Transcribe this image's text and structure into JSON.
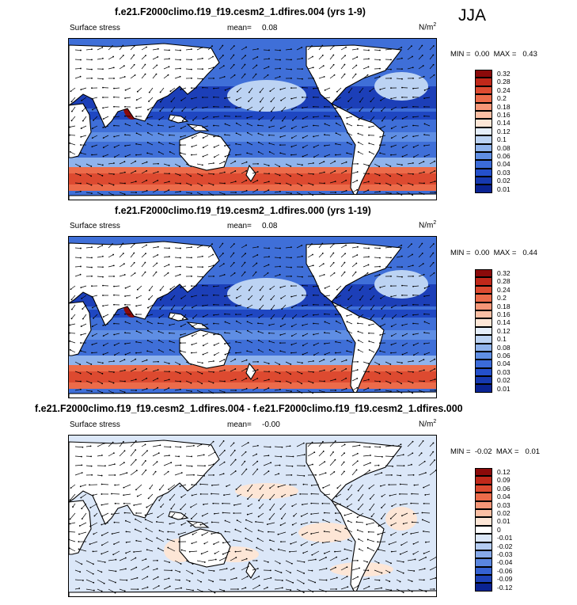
{
  "season": "JJA",
  "panels": [
    {
      "title": "f.e21.F2000climo.f19_f19.cesm2_1.dfires.004 (yrs 1-9)",
      "variable": "Surface stress",
      "mean_label": "mean=",
      "mean": "0.08",
      "units_base": "N/m",
      "units_exp": "2",
      "min_label": "MIN =",
      "min": "0.00",
      "max_label": "MAX =",
      "max": "0.43",
      "colorbar_levels": [
        "0.32",
        "0.28",
        "0.24",
        "0.2",
        "0.18",
        "0.16",
        "0.14",
        "0.12",
        "0.1",
        "0.08",
        "0.06",
        "0.04",
        "0.03",
        "0.02",
        "0.01"
      ],
      "colorbar_colors": [
        "#8b0a0a",
        "#c0281a",
        "#dd4a30",
        "#ec6b4a",
        "#f59677",
        "#fbbfa4",
        "#fde6d6",
        "#e5eefa",
        "#bcd3f3",
        "#8fb3ec",
        "#5f8ee4",
        "#3b6bd9",
        "#2450cc",
        "#1639b0",
        "#0a2392"
      ]
    },
    {
      "title": "f.e21.F2000climo.f19_f19.cesm2_1.dfires.000 (yrs 1-19)",
      "variable": "Surface stress",
      "mean_label": "mean=",
      "mean": "0.08",
      "units_base": "N/m",
      "units_exp": "2",
      "min_label": "MIN =",
      "min": "0.00",
      "max_label": "MAX =",
      "max": "0.44",
      "colorbar_levels": [
        "0.32",
        "0.28",
        "0.24",
        "0.2",
        "0.18",
        "0.16",
        "0.14",
        "0.12",
        "0.1",
        "0.08",
        "0.06",
        "0.04",
        "0.03",
        "0.02",
        "0.01"
      ],
      "colorbar_colors": [
        "#8b0a0a",
        "#c0281a",
        "#dd4a30",
        "#ec6b4a",
        "#f59677",
        "#fbbfa4",
        "#fde6d6",
        "#e5eefa",
        "#bcd3f3",
        "#8fb3ec",
        "#5f8ee4",
        "#3b6bd9",
        "#2450cc",
        "#1639b0",
        "#0a2392"
      ]
    },
    {
      "title": "f.e21.F2000climo.f19_f19.cesm2_1.dfires.004 - f.e21.F2000climo.f19_f19.cesm2_1.dfires.000",
      "variable": "Surface stress",
      "mean_label": "mean=",
      "mean": "-0.00",
      "units_base": "N/m",
      "units_exp": "2",
      "min_label": "MIN =",
      "min": "-0.02",
      "max_label": "MAX =",
      "max": "0.01",
      "colorbar_levels": [
        "0.12",
        "0.09",
        "0.06",
        "0.04",
        "0.03",
        "0.02",
        "0.01",
        "0",
        "-0.01",
        "-0.02",
        "-0.03",
        "-0.04",
        "-0.06",
        "-0.09",
        "-0.12"
      ],
      "colorbar_colors": [
        "#8b0a0a",
        "#c0281a",
        "#dd4a30",
        "#ec6b4a",
        "#f59677",
        "#fbbfa4",
        "#fde6d6",
        "#ffffff",
        "#dbe7f8",
        "#b3cbf1",
        "#86a9e9",
        "#5a86df",
        "#3562d2",
        "#1d42b8",
        "#0a2392"
      ]
    }
  ]
}
